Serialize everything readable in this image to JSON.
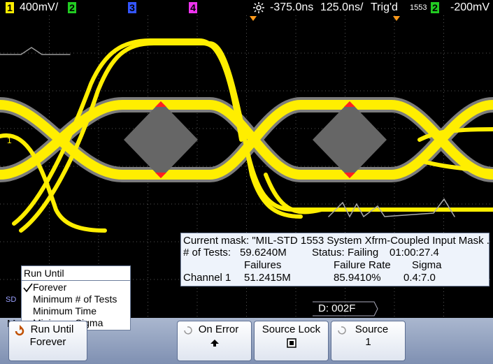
{
  "status_bar": {
    "channel_1": "1",
    "channel_1_scale": "400mV/",
    "channel_2": "2",
    "channel_3": "3",
    "channel_4": "4",
    "time_delay": "-375.0ns",
    "time_scale": "125.0ns/",
    "trigger_status": "Trig'd",
    "trigger_mode": "1553",
    "trigger_source": "2",
    "trigger_level": "-200mV"
  },
  "screen": {
    "channel_marker": "1",
    "serial_decode_marker": "SD",
    "decode_label": "D: 002F"
  },
  "mask_info": {
    "title": "Current mask: \"MIL-STD 1553 System Xfrm-Coupled Input Mask ..",
    "tests_label": "# of Tests:",
    "tests_value": "59.6240M",
    "status_label": "Status:",
    "status_value": "Failing",
    "elapsed_time": "01:00:27.4",
    "columns": [
      "Failures",
      "Failure Rate",
      "Sigma"
    ],
    "row": {
      "label": "Channel 1",
      "values": [
        "51.2415M",
        "85.9410%",
        "0.4:7.0"
      ]
    }
  },
  "menu": {
    "title": "Run Until",
    "options": [
      "Forever",
      "Minimum # of Tests",
      "Minimum Time",
      "Minimum Sigma"
    ],
    "selected": 0
  },
  "softkey_menu_title": "Mask Options",
  "softkeys": [
    {
      "label": "Run Until",
      "value": "Forever"
    },
    {
      "label": "On Error"
    },
    {
      "label": "Source Lock"
    },
    {
      "label": "Source",
      "value": "1"
    }
  ]
}
